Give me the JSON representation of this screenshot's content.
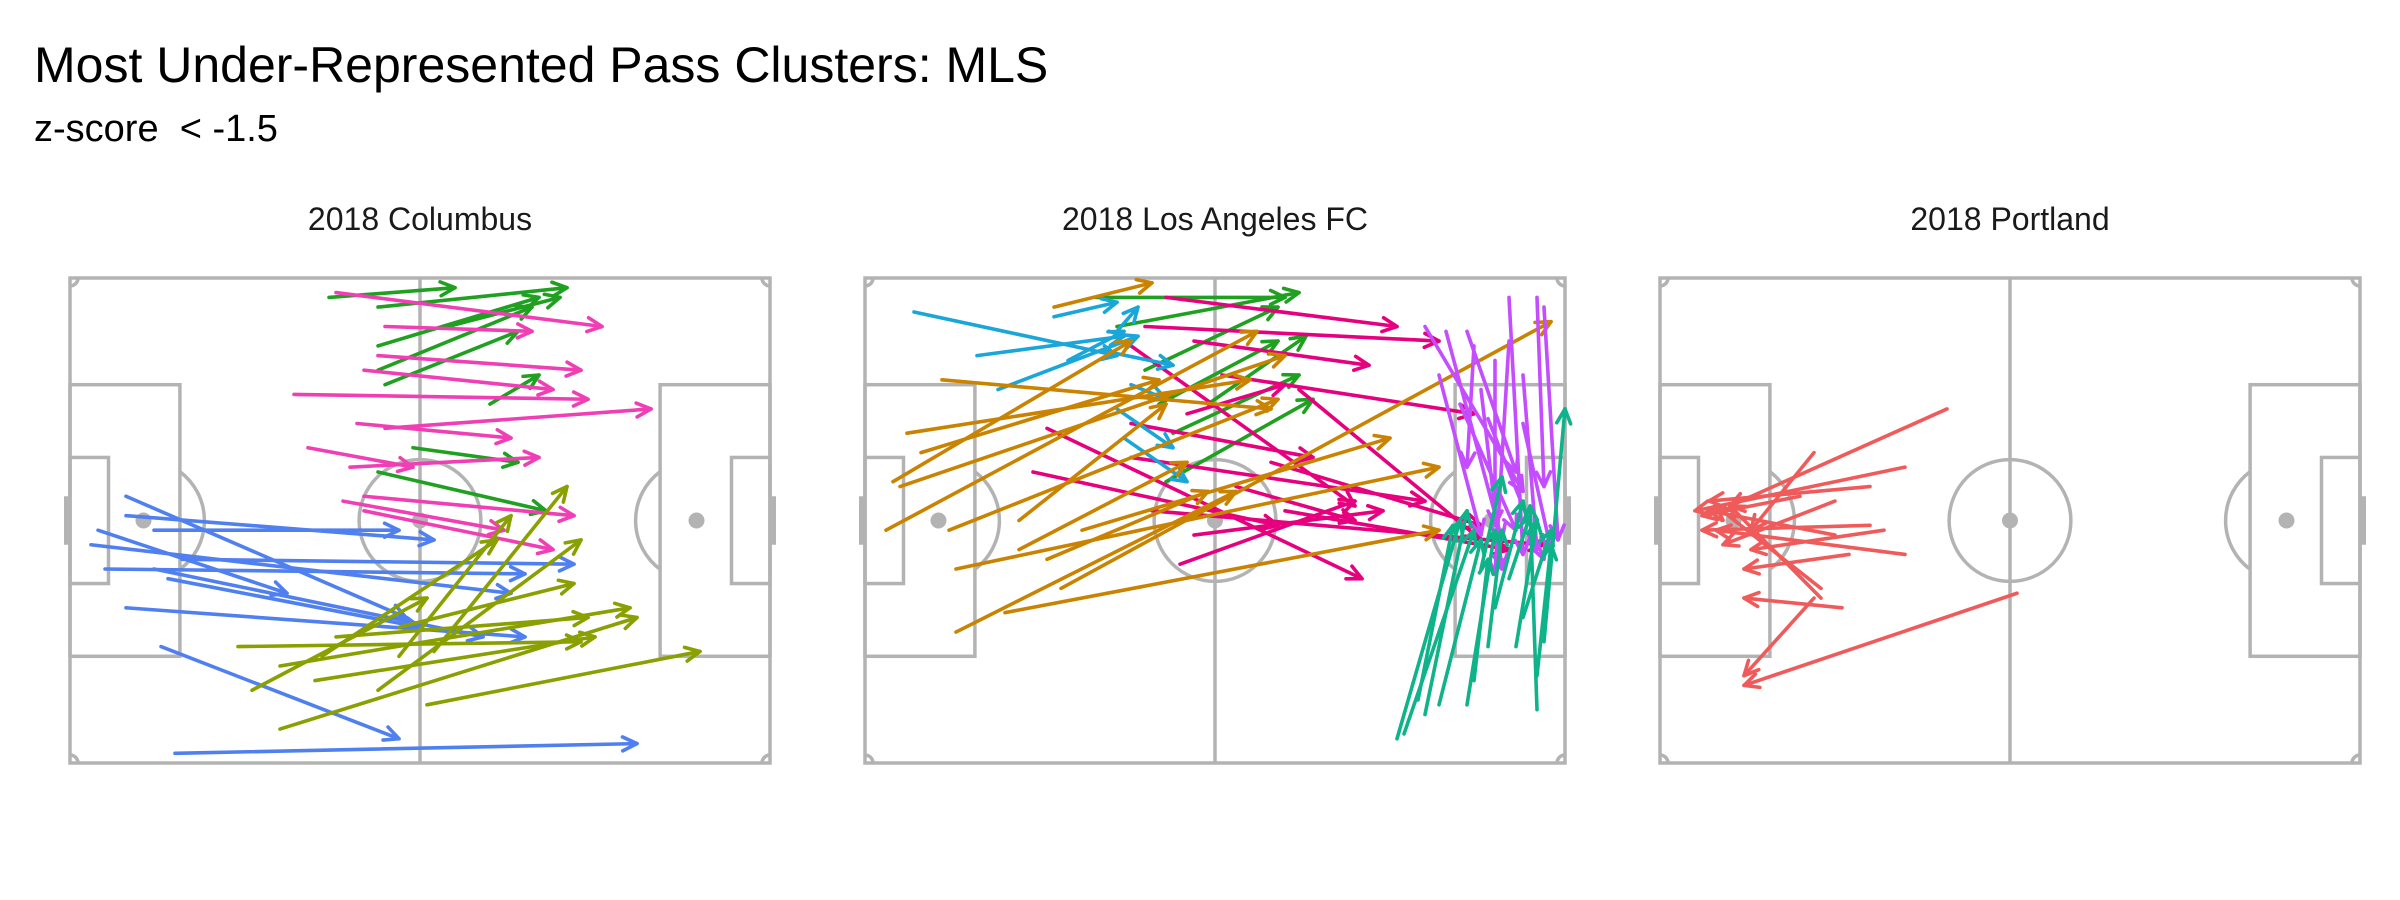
{
  "title": "Most Under-Represented Pass Clusters: MLS",
  "subtitle": "z-score  < -1.5",
  "colors": {
    "pitch": "#b3b3b3"
  },
  "chart_data": {
    "type": "scatter",
    "panels": [
      {
        "title": "2018 Columbus",
        "passes": [
          {
            "color": "#e6007e",
            "arrows": []
          }
        ],
        "clusters": [
          {
            "color": "#20a020",
            "arrows": [
              [
                37,
                96,
                55,
                98
              ],
              [
                44,
                94,
                71,
                98
              ],
              [
                44,
                86,
                67,
                96
              ],
              [
                44,
                81,
                66,
                94
              ],
              [
                45,
                78,
                64,
                89
              ],
              [
                54,
                90,
                70,
                96
              ],
              [
                49,
                65,
                64,
                62
              ],
              [
                44,
                60,
                68,
                52
              ],
              [
                60,
                74,
                67,
                80
              ]
            ]
          },
          {
            "color": "#f03fb4",
            "arrows": [
              [
                38,
                97,
                76,
                90
              ],
              [
                44,
                84,
                73,
                81
              ],
              [
                45,
                90,
                66,
                89
              ],
              [
                32,
                76,
                74,
                75
              ],
              [
                34,
                65,
                49,
                61
              ],
              [
                39,
                54,
                62,
                48
              ],
              [
                40,
                61,
                67,
                63
              ],
              [
                41,
                70,
                63,
                67
              ],
              [
                42,
                52,
                69,
                44
              ],
              [
                45,
                69,
                83,
                73
              ],
              [
                42,
                55,
                72,
                51
              ],
              [
                42,
                81,
                69,
                77
              ]
            ]
          },
          {
            "color": "#5080f0",
            "arrows": [
              [
                8,
                51,
                52,
                46
              ],
              [
                5,
                40,
                65,
                39
              ],
              [
                3,
                45,
                63,
                35
              ],
              [
                12,
                40,
                59,
                26
              ],
              [
                8,
                32,
                65,
                26
              ],
              [
                8,
                55,
                48,
                30
              ],
              [
                4,
                48,
                31,
                35
              ],
              [
                14,
                38,
                50,
                28
              ],
              [
                13,
                24,
                47,
                5
              ],
              [
                15,
                2,
                81,
                4
              ],
              [
                16,
                42,
                72,
                41
              ],
              [
                12,
                48,
                47,
                48
              ]
            ]
          },
          {
            "color": "#8aa000",
            "arrows": [
              [
                24,
                24,
                73,
                25
              ],
              [
                30,
                20,
                80,
                32
              ],
              [
                30,
                7,
                81,
                30
              ],
              [
                35,
                17,
                75,
                26
              ],
              [
                38,
                26,
                74,
                30
              ],
              [
                47,
                28,
                72,
                37
              ],
              [
                26,
                15,
                51,
                34
              ],
              [
                36,
                22,
                61,
                46
              ],
              [
                44,
                15,
                73,
                46
              ],
              [
                47,
                22,
                63,
                51
              ],
              [
                52,
                23,
                71,
                57
              ],
              [
                51,
                12,
                90,
                23
              ]
            ]
          }
        ]
      },
      {
        "title": "2018 Los Angeles FC",
        "clusters": [
          {
            "color": "#20a020",
            "arrows": [
              [
                33,
                96,
                60,
                96
              ],
              [
                36,
                90,
                62,
                97
              ],
              [
                40,
                81,
                59,
                94
              ],
              [
                42,
                74,
                59,
                87
              ],
              [
                44,
                68,
                62,
                80
              ],
              [
                43,
                58,
                64,
                75
              ],
              [
                49,
                74,
                63,
                88
              ]
            ]
          },
          {
            "color": "#e6007e",
            "arrows": [
              [
                43,
                96,
                76,
                90
              ],
              [
                40,
                90,
                82,
                87
              ],
              [
                47,
                87,
                72,
                82
              ],
              [
                46,
                72,
                60,
                78
              ],
              [
                38,
                70,
                64,
                63
              ],
              [
                38,
                63,
                80,
                54
              ],
              [
                26,
                69,
                71,
                38
              ],
              [
                24,
                60,
                59,
                49
              ],
              [
                47,
                47,
                74,
                52
              ],
              [
                53,
                57,
                70,
                50
              ],
              [
                45,
                41,
                70,
                54
              ],
              [
                60,
                52,
                92,
                44
              ],
              [
                62,
                77,
                88,
                46
              ],
              [
                58,
                62,
                88,
                49
              ],
              [
                41,
                52,
                97,
                45
              ],
              [
                38,
                86,
                70,
                53
              ],
              [
                51,
                80,
                87,
                72
              ]
            ]
          },
          {
            "color": "#1aa6d8",
            "arrows": [
              [
                7,
                93,
                36,
                84
              ],
              [
                16,
                84,
                37,
                88
              ],
              [
                19,
                77,
                39,
                88
              ],
              [
                29,
                83,
                37,
                89
              ],
              [
                27,
                92,
                36,
                95
              ],
              [
                38,
                78,
                43,
                75
              ],
              [
                34,
                85,
                44,
                82
              ],
              [
                36,
                89,
                39,
                94
              ],
              [
                36,
                73,
                44,
                65
              ],
              [
                37,
                67,
                46,
                58
              ]
            ]
          },
          {
            "color": "#c98300",
            "arrows": [
              [
                27,
                94,
                41,
                99
              ],
              [
                11,
                79,
                58,
                73
              ],
              [
                6,
                68,
                55,
                79
              ],
              [
                5,
                57,
                60,
                84
              ],
              [
                3,
                48,
                56,
                89
              ],
              [
                12,
                48,
                59,
                75
              ],
              [
                8,
                64,
                42,
                79
              ],
              [
                4,
                58,
                38,
                87
              ],
              [
                22,
                44,
                46,
                62
              ],
              [
                31,
                48,
                75,
                67
              ],
              [
                13,
                40,
                82,
                61
              ],
              [
                13,
                27,
                53,
                56
              ],
              [
                20,
                31,
                82,
                48
              ],
              [
                28,
                36,
                98,
                91
              ],
              [
                22,
                50,
                43,
                74
              ],
              [
                26,
                42,
                49,
                56
              ]
            ]
          },
          {
            "color": "#c34dff",
            "arrows": [
              [
                80,
                90,
                94,
                56
              ],
              [
                83,
                89,
                91,
                46
              ],
              [
                82,
                80,
                88,
                47
              ],
              [
                87,
                86,
                86,
                61
              ],
              [
                90,
                83,
                90,
                49
              ],
              [
                94,
                80,
                96,
                44
              ],
              [
                92,
                96,
                94,
                43
              ],
              [
                96,
                96,
                97,
                57
              ],
              [
                88,
                77,
                91,
                40
              ],
              [
                85,
                74,
                93,
                48
              ],
              [
                97,
                94,
                99,
                46
              ],
              [
                89,
                71,
                97,
                42
              ],
              [
                94,
                70,
                98,
                44
              ],
              [
                92,
                87,
                90,
                39
              ],
              [
                86,
                89,
                93,
                60
              ]
            ]
          },
          {
            "color": "#0fb38a",
            "arrows": [
              [
                76,
                5,
                85,
                50
              ],
              [
                79,
                13,
                84,
                49
              ],
              [
                82,
                12,
                88,
                46
              ],
              [
                86,
                12,
                90,
                48
              ],
              [
                89,
                24,
                91,
                48
              ],
              [
                90,
                32,
                94,
                54
              ],
              [
                92,
                38,
                95,
                51
              ],
              [
                96,
                18,
                98,
                45
              ],
              [
                93,
                24,
                96,
                50
              ],
              [
                97,
                25,
                100,
                73
              ],
              [
                94,
                30,
                98,
                48
              ],
              [
                88,
                40,
                91,
                59
              ],
              [
                96,
                11,
                95,
                53
              ],
              [
                80,
                10,
                86,
                52
              ],
              [
                77,
                6,
                87,
                48
              ],
              [
                87,
                17,
                89,
                42
              ]
            ]
          }
        ]
      },
      {
        "title": "2018 Portland",
        "clusters": [
          {
            "color": "#ef5b5b",
            "arrows": [
              [
                41,
                73,
                10,
                53
              ],
              [
                35,
                61,
                5,
                52
              ],
              [
                25,
                54,
                9,
                45
              ],
              [
                30,
                49,
                6,
                48
              ],
              [
                35,
                43,
                8,
                48
              ],
              [
                25,
                47,
                7,
                52
              ],
              [
                32,
                48,
                13,
                44
              ],
              [
                26,
                32,
                12,
                34
              ],
              [
                23,
                36,
                8,
                53
              ],
              [
                20,
                55,
                6,
                51
              ],
              [
                30,
                57,
                7,
                54
              ],
              [
                27,
                43,
                12,
                40
              ],
              [
                22,
                64,
                13,
                48
              ],
              [
                23,
                34,
                10,
                53
              ]
            ]
          },
          {
            "color": "#ef5b5b",
            "arrows": [
              [
                22,
                34,
                12,
                18
              ],
              [
                51,
                35,
                12,
                16
              ]
            ]
          }
        ]
      }
    ]
  }
}
